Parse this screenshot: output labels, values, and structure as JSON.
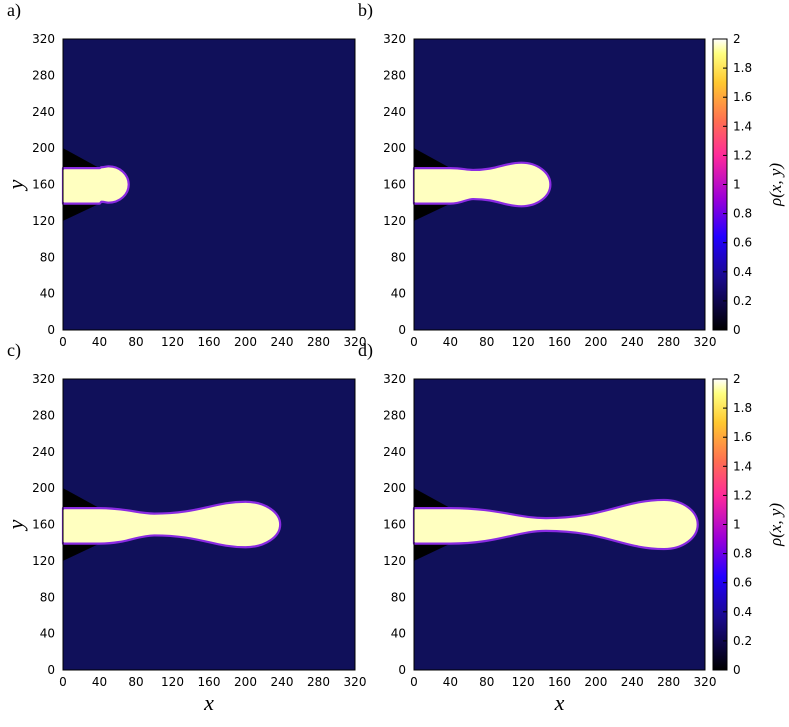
{
  "chart_data": {
    "type": "heatmap",
    "colormap": "black-blue-purple-red-orange-yellow-white",
    "background_color": "#10105a",
    "wall_color": "#000000",
    "droplet_color": "#ffffc0",
    "interface_color": "#8a2be2",
    "xlim": [
      0,
      320
    ],
    "ylim": [
      0,
      320
    ],
    "xticks": [
      "0",
      "40",
      "80",
      "120",
      "160",
      "200",
      "240",
      "280",
      "320"
    ],
    "yticks": [
      "0",
      "40",
      "80",
      "120",
      "160",
      "200",
      "240",
      "280",
      "320"
    ],
    "xlabel": "x",
    "ylabel": "y",
    "colorbar": {
      "label": "ρ(x, y)",
      "range": [
        0,
        2
      ],
      "ticks": [
        "0",
        "0.2",
        "0.4",
        "0.6",
        "0.8",
        "1",
        "1.2",
        "1.4",
        "1.6",
        "1.8",
        "2"
      ]
    },
    "wedge": {
      "x_end": 40,
      "y_outer_top": 200,
      "y_outer_bottom": 120,
      "y_channel_top": 178,
      "y_channel_bottom": 139
    },
    "panels": [
      {
        "label": "a)",
        "tip_x": 72,
        "head_x": 50,
        "head_r": 20,
        "neck_x": 42,
        "neck_half": 19
      },
      {
        "label": "b)",
        "tip_x": 150,
        "head_x": 118,
        "head_r": 24,
        "neck_x": 65,
        "neck_half": 16
      },
      {
        "label": "c)",
        "tip_x": 238,
        "head_x": 200,
        "head_r": 25,
        "neck_x": 100,
        "neck_half": 12
      },
      {
        "label": "d)",
        "tip_x": 312,
        "head_x": 275,
        "head_r": 27,
        "neck_x": 145,
        "neck_half": 7
      }
    ]
  }
}
